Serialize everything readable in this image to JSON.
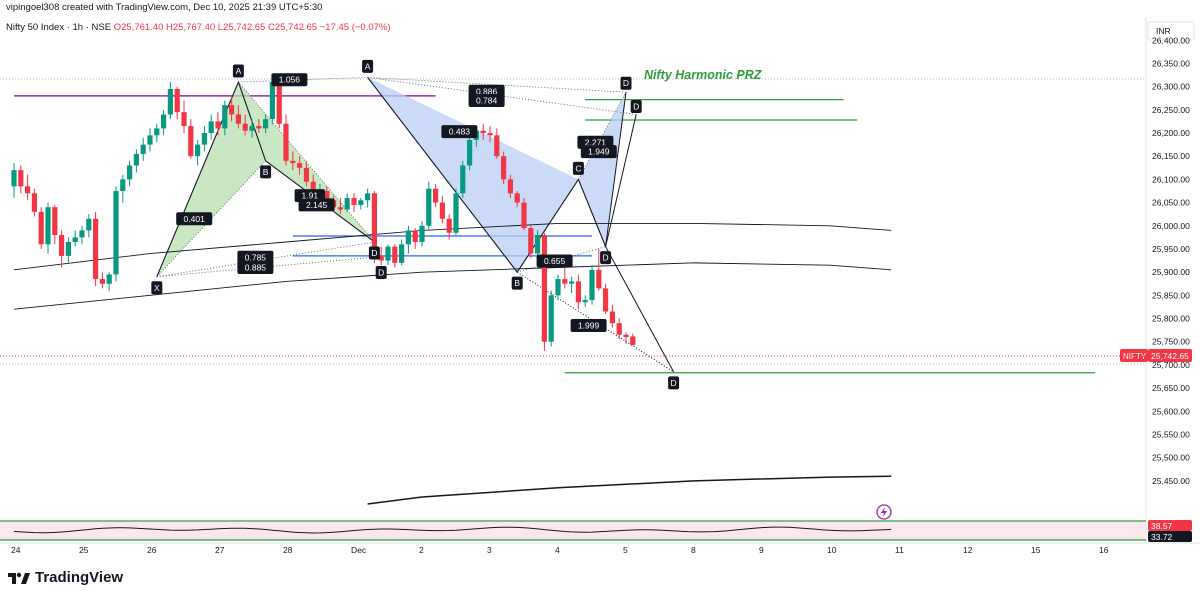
{
  "header": {
    "created_by": "vipingoel308 created with TradingView.com, Dec 10, 2025 21:39 UTC+5:30",
    "symbol": "Nifty 50 Index · 1h · NSE",
    "open": "O25,761.40",
    "high": "H25,767.40",
    "low": "L25,742.65",
    "close": "C25,742.65",
    "change": "−17.45 (−0.07%)"
  },
  "currency": "INR",
  "brand": "TradingView",
  "price_tag": {
    "symbol": "NIFTY",
    "value": "25,742.65"
  },
  "indicator_tags": [
    "38.57",
    "33.72"
  ],
  "colors": {
    "up": "#089981",
    "down": "#f23645",
    "bull_pattern": "#b8dfb0",
    "bear_pattern": "#b9cdf3",
    "prz": "#2e9d3a"
  },
  "annotation": "Nifty Harmonic PRZ",
  "chart_data": {
    "type": "candlestick",
    "ylim": [
      25400,
      26420
    ],
    "y_ticks": [
      25450,
      25500,
      25550,
      25600,
      25650,
      25700,
      25750,
      25800,
      25850,
      25900,
      25950,
      26000,
      26050,
      26100,
      26150,
      26200,
      26250,
      26300,
      26350,
      26400
    ],
    "x_ticks": [
      {
        "label": "24",
        "bar": 0
      },
      {
        "label": "25",
        "bar": 10
      },
      {
        "label": "26",
        "bar": 20
      },
      {
        "label": "27",
        "bar": 30
      },
      {
        "label": "28",
        "bar": 40
      },
      {
        "label": "Dec",
        "bar": 50
      },
      {
        "label": "2",
        "bar": 60
      },
      {
        "label": "3",
        "bar": 70
      },
      {
        "label": "4",
        "bar": 80
      },
      {
        "label": "5",
        "bar": 90
      },
      {
        "label": "8",
        "bar": 100
      },
      {
        "label": "9",
        "bar": 110
      },
      {
        "label": "10",
        "bar": 120
      },
      {
        "label": "11",
        "bar": 130
      },
      {
        "label": "12",
        "bar": 140
      },
      {
        "label": "15",
        "bar": 150
      },
      {
        "label": "16",
        "bar": 160
      }
    ],
    "candles": [
      [
        26085,
        26135,
        26060,
        26120
      ],
      [
        26120,
        26130,
        26070,
        26085
      ],
      [
        26085,
        26110,
        26055,
        26070
      ],
      [
        26070,
        26080,
        26020,
        26030
      ],
      [
        26030,
        26040,
        25950,
        25960
      ],
      [
        25960,
        26050,
        25940,
        26040
      ],
      [
        26040,
        26045,
        25960,
        25980
      ],
      [
        25980,
        25990,
        25910,
        25935
      ],
      [
        25935,
        25975,
        25920,
        25965
      ],
      [
        25965,
        25990,
        25955,
        25975
      ],
      [
        25975,
        26000,
        25960,
        25990
      ],
      [
        25990,
        26025,
        25975,
        26015
      ],
      [
        26015,
        26030,
        25870,
        25885
      ],
      [
        25885,
        25900,
        25865,
        25875
      ],
      [
        25875,
        25900,
        25860,
        25895
      ],
      [
        25895,
        26085,
        25880,
        26075
      ],
      [
        26075,
        26110,
        26050,
        26100
      ],
      [
        26100,
        26140,
        26085,
        26130
      ],
      [
        26130,
        26165,
        26115,
        26155
      ],
      [
        26155,
        26190,
        26140,
        26175
      ],
      [
        26175,
        26210,
        26160,
        26195
      ],
      [
        26195,
        26220,
        26180,
        26210
      ],
      [
        26210,
        26250,
        26195,
        26240
      ],
      [
        26240,
        26310,
        26230,
        26295
      ],
      [
        26295,
        26300,
        26230,
        26245
      ],
      [
        26245,
        26270,
        26200,
        26215
      ],
      [
        26215,
        26230,
        26145,
        26150
      ],
      [
        26150,
        26185,
        26130,
        26175
      ],
      [
        26175,
        26215,
        26160,
        26200
      ],
      [
        26200,
        26240,
        26185,
        26225
      ],
      [
        26225,
        26245,
        26195,
        26210
      ],
      [
        26210,
        26270,
        26195,
        26260
      ],
      [
        26260,
        26280,
        26225,
        26240
      ],
      [
        26240,
        26260,
        26210,
        26220
      ],
      [
        26220,
        26240,
        26195,
        26205
      ],
      [
        26205,
        26230,
        26190,
        26215
      ],
      [
        26215,
        26230,
        26200,
        26210
      ],
      [
        26210,
        26240,
        26200,
        26230
      ],
      [
        26230,
        26320,
        26220,
        26310
      ],
      [
        26310,
        26315,
        26210,
        26220
      ],
      [
        26220,
        26240,
        26130,
        26140
      ],
      [
        26140,
        26160,
        26120,
        26135
      ],
      [
        26135,
        26150,
        26110,
        26125
      ],
      [
        26125,
        26140,
        26085,
        26095
      ],
      [
        26095,
        26110,
        26040,
        26050
      ],
      [
        26050,
        26090,
        26040,
        26075
      ],
      [
        26075,
        26085,
        26045,
        26055
      ],
      [
        26055,
        26065,
        26030,
        26040
      ],
      [
        26040,
        26060,
        26025,
        26035
      ],
      [
        26035,
        26070,
        26030,
        26060
      ],
      [
        26060,
        26070,
        26030,
        26045
      ],
      [
        26045,
        26060,
        26035,
        26055
      ],
      [
        26055,
        26080,
        26040,
        26070
      ],
      [
        26070,
        26075,
        25920,
        25935
      ],
      [
        25935,
        25955,
        25915,
        25925
      ],
      [
        25925,
        25960,
        25915,
        25955
      ],
      [
        25955,
        25960,
        25910,
        25920
      ],
      [
        25920,
        25970,
        25915,
        25960
      ],
      [
        25960,
        26000,
        25940,
        25990
      ],
      [
        25990,
        25995,
        25950,
        25965
      ],
      [
        25965,
        26010,
        25955,
        26000
      ],
      [
        26000,
        26095,
        25990,
        26080
      ],
      [
        26080,
        26090,
        26040,
        26050
      ],
      [
        26050,
        26065,
        26005,
        26015
      ],
      [
        26015,
        26025,
        25970,
        25985
      ],
      [
        25985,
        26080,
        25980,
        26070
      ],
      [
        26070,
        26140,
        26060,
        26130
      ],
      [
        26130,
        26195,
        26120,
        26185
      ],
      [
        26185,
        26215,
        26170,
        26205
      ],
      [
        26205,
        26220,
        26185,
        26200
      ],
      [
        26200,
        26215,
        26180,
        26195
      ],
      [
        26195,
        26210,
        26145,
        26150
      ],
      [
        26150,
        26160,
        26090,
        26100
      ],
      [
        26100,
        26110,
        26060,
        26070
      ],
      [
        26070,
        26075,
        26040,
        26050
      ],
      [
        26050,
        26060,
        25990,
        25995
      ],
      [
        25995,
        26000,
        25930,
        25940
      ],
      [
        25940,
        25990,
        25910,
        25980
      ],
      [
        25980,
        25985,
        25730,
        25750
      ],
      [
        25750,
        25860,
        25740,
        25850
      ],
      [
        25850,
        25895,
        25840,
        25885
      ],
      [
        25885,
        25925,
        25865,
        25875
      ],
      [
        25875,
        25890,
        25855,
        25880
      ],
      [
        25880,
        25895,
        25820,
        25835
      ],
      [
        25835,
        25850,
        25825,
        25840
      ],
      [
        25840,
        25915,
        25830,
        25905
      ],
      [
        25905,
        25950,
        25860,
        25865
      ],
      [
        25865,
        25875,
        25810,
        25815
      ],
      [
        25815,
        25830,
        25780,
        25790
      ],
      [
        25790,
        25800,
        25755,
        25765
      ],
      [
        25765,
        25770,
        25745,
        25760
      ],
      [
        25761.4,
        25767.4,
        25742.65,
        25742.65
      ]
    ],
    "moving_averages": [
      {
        "name": "upper",
        "points": [
          [
            0,
            25905
          ],
          [
            20,
            25940
          ],
          [
            40,
            25965
          ],
          [
            60,
            25990
          ],
          [
            80,
            26005
          ],
          [
            100,
            26005
          ],
          [
            120,
            26000
          ],
          [
            129,
            25990
          ]
        ]
      },
      {
        "name": "lower",
        "points": [
          [
            0,
            25820
          ],
          [
            20,
            25850
          ],
          [
            40,
            25880
          ],
          [
            60,
            25900
          ],
          [
            80,
            25910
          ],
          [
            100,
            25920
          ],
          [
            120,
            25915
          ],
          [
            129,
            25905
          ]
        ]
      },
      {
        "name": "long",
        "points": [
          [
            52,
            25400
          ],
          [
            60,
            25415
          ],
          [
            80,
            25435
          ],
          [
            100,
            25450
          ],
          [
            120,
            25458
          ],
          [
            129,
            25460
          ]
        ]
      }
    ],
    "patterns": [
      {
        "type": "bullish",
        "fill": "green",
        "points": [
          [
            "X",
            21,
            25890
          ],
          [
            "A",
            33,
            26310
          ],
          [
            "B",
            37,
            26140
          ],
          [
            "D",
            53,
            25965
          ]
        ],
        "ratios": {
          "XB": "0.401",
          "AC": "1.056",
          "BD": "1.91",
          "BD2": "2.145",
          "XD": "0.785",
          "XD2": "0.885"
        }
      },
      {
        "type": "bearish",
        "fill": "blue",
        "points": [
          [
            "A",
            52,
            26320
          ],
          [
            "B",
            74,
            25900
          ],
          [
            "C",
            83,
            26100
          ],
          [
            "D",
            87,
            25955
          ]
        ],
        "ratios": {
          "AB": "0.483",
          "BC": "0.655",
          "CD": "2.271",
          "CD2": "1.949",
          "AD1": "0.886",
          "AD2": "0.784"
        }
      },
      {
        "type": "projection",
        "points": [
          [
            "B",
            74,
            25900
          ],
          [
            "C",
            83,
            26100
          ],
          [
            "D",
            97,
            25685
          ]
        ],
        "ratio": "1.999"
      }
    ],
    "levels": [
      {
        "name": "prz-d1",
        "price": 26272,
        "from": 84,
        "to": 122
      },
      {
        "name": "prz-d2",
        "price": 26228,
        "from": 84,
        "to": 124
      },
      {
        "name": "prz-d3",
        "price": 25683,
        "from": 81,
        "to": 159
      },
      {
        "name": "blue-level-1",
        "price": 25978,
        "from": 41,
        "to": 85
      },
      {
        "name": "blue-level-2",
        "price": 25935,
        "from": 41,
        "to": 85
      },
      {
        "name": "purple-level",
        "price": 26280,
        "from": 0,
        "to": 62
      }
    ]
  }
}
